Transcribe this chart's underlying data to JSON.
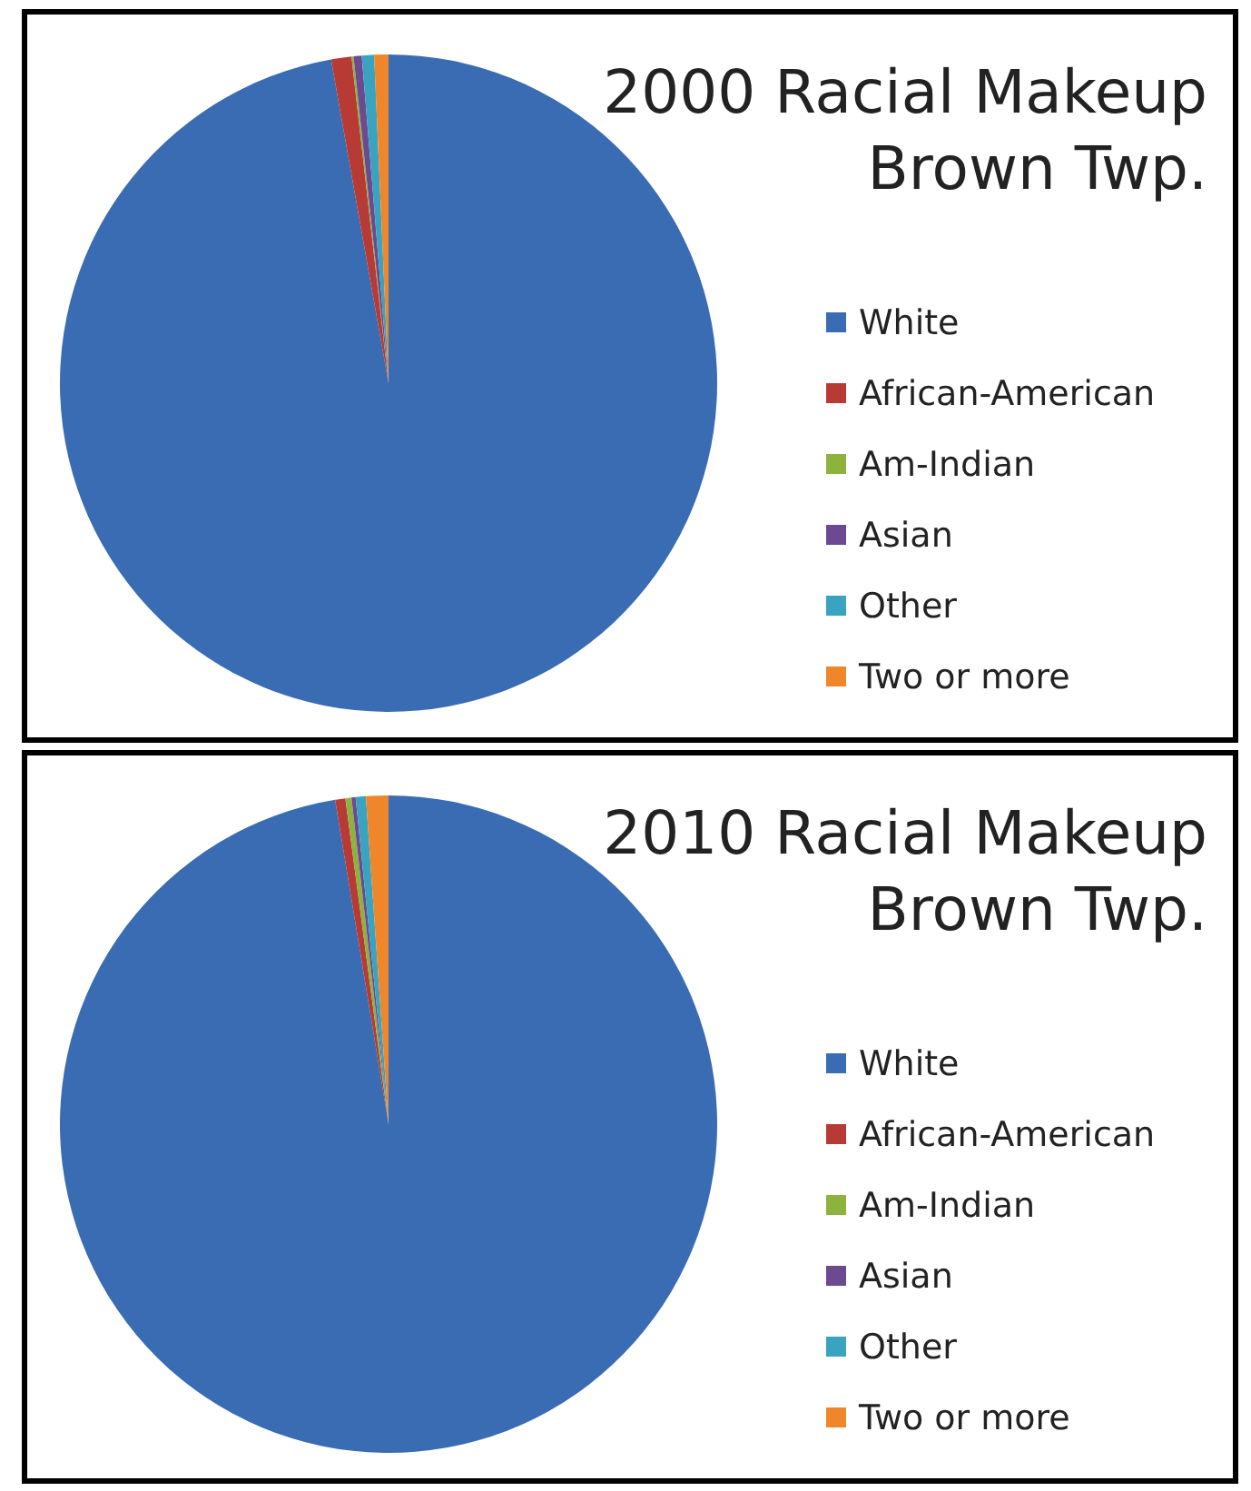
{
  "chart_data": [
    {
      "type": "pie",
      "title": "2000 Racial Makeup\nBrown Twp.",
      "categories": [
        "White",
        "African-American",
        "Am-Indian",
        "Asian",
        "Other",
        "Two or more"
      ],
      "values": [
        97.2,
        1.0,
        0.1,
        0.4,
        0.6,
        0.7
      ],
      "colors": [
        "#3a6cb3",
        "#b83a35",
        "#8db33f",
        "#6c4a91",
        "#3aa3c0",
        "#f0862a"
      ],
      "legend": "right"
    },
    {
      "type": "pie",
      "title": "2010 Racial Makeup\nBrown Twp.",
      "categories": [
        "White",
        "African-American",
        "Am-Indian",
        "Asian",
        "Other",
        "Two or more"
      ],
      "values": [
        97.4,
        0.5,
        0.3,
        0.2,
        0.5,
        1.1
      ],
      "colors": [
        "#3a6cb3",
        "#b83a35",
        "#8db33f",
        "#6c4a91",
        "#3aa3c0",
        "#f0862a"
      ],
      "legend": "right"
    }
  ]
}
